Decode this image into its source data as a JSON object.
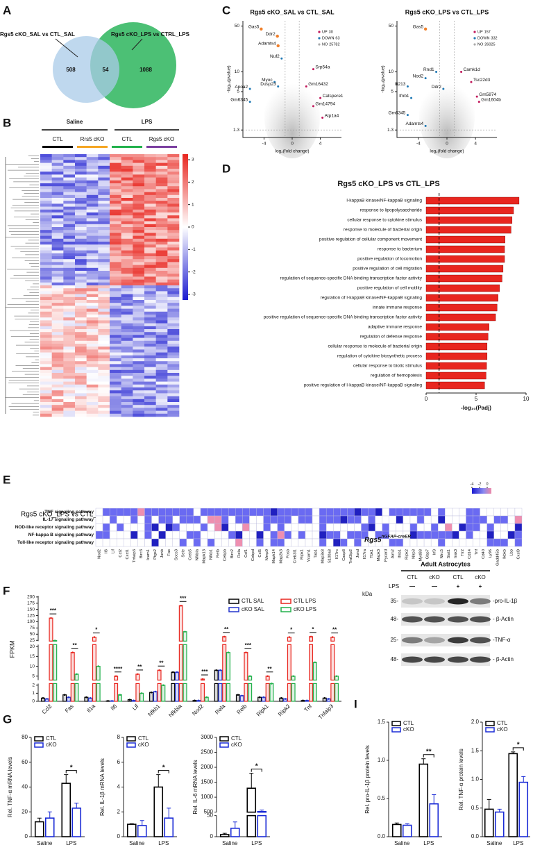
{
  "panel_labels": [
    "A",
    "B",
    "C",
    "D",
    "E",
    "F",
    "G",
    "H",
    "I"
  ],
  "venn": {
    "sets": [
      {
        "name": "Rgs5 cKO_SAL vs CTL_SAL",
        "color": "#a9cbe8"
      },
      {
        "name": "Rgs5 cKO_LPS vs CTRL_LPS",
        "color": "#2db55d"
      }
    ],
    "counts": [
      508,
      54,
      1088
    ]
  },
  "heatmap": {
    "groups": [
      "Saline",
      "LPS"
    ],
    "columns": [
      {
        "name": "CTL",
        "color": "#000000"
      },
      {
        "name": "Rrs5 cKO",
        "color": "#f5a623"
      },
      {
        "name": "CTL",
        "color": "#22b14c"
      },
      {
        "name": "Rgs5 cKO",
        "color": "#7b3fa0"
      }
    ],
    "cticks": [
      3,
      2,
      1,
      0,
      -1,
      -2,
      -3
    ]
  },
  "volcano": [
    {
      "title": "Rgs5 cKO_SAL vs CTL_SAL",
      "xlabel": "log₂(fold change)",
      "ylabel": "-log₁₀(pvalue)",
      "xlim": [
        -7,
        7
      ],
      "xticks": [
        -4,
        0,
        4
      ],
      "ylim": [
        1,
        60
      ],
      "yscale": "log",
      "yticks": [
        1.3,
        5,
        10,
        50
      ],
      "fc_cutoff": [
        -1,
        1
      ],
      "p_cutoff": 1.3,
      "legend": [
        {
          "name": "UP",
          "value": 30,
          "color": "#c2185b"
        },
        {
          "name": "DOWN",
          "value": 63,
          "color": "#1f78b4"
        },
        {
          "name": "NO",
          "value": 25782,
          "color": "#aaaaaa"
        }
      ],
      "genes": [
        {
          "name": "Gas5",
          "x": -4.4,
          "y": 45,
          "color": "#f07f2a"
        },
        {
          "name": "Ddr2",
          "x": -2.1,
          "y": 35,
          "color": "#f07f2a"
        },
        {
          "name": "Adamts4",
          "x": -2,
          "y": 25,
          "color": "#f07f2a"
        },
        {
          "name": "Nuf2",
          "x": -1.5,
          "y": 16
        },
        {
          "name": "Srp54a",
          "x": 3,
          "y": 11
        },
        {
          "name": "Myoc",
          "x": -2.5,
          "y": 7
        },
        {
          "name": "Dusp23",
          "x": -2,
          "y": 6
        },
        {
          "name": "Gm16432",
          "x": 2,
          "y": 6
        },
        {
          "name": "Apoa2",
          "x": -6,
          "y": 5.5
        },
        {
          "name": "Gm6345",
          "x": -6,
          "y": 3.5
        },
        {
          "name": "Catspere1",
          "x": 4,
          "y": 4
        },
        {
          "name": "Gm14794",
          "x": 3,
          "y": 3
        },
        {
          "name": "Atp1a4",
          "x": 4.3,
          "y": 2
        }
      ]
    },
    {
      "title": "Rgs5 cKO_LPS vs CTL_LPS",
      "xlabel": "log₂(fold change)",
      "ylabel": "-log₁₀(pvalue)",
      "xlim": [
        -7,
        7
      ],
      "xticks": [
        -4,
        0,
        4
      ],
      "ylim": [
        1,
        60
      ],
      "yscale": "log",
      "yticks": [
        1.3,
        5,
        10,
        50
      ],
      "fc_cutoff": [
        -1,
        1
      ],
      "p_cutoff": 1.3,
      "legend": [
        {
          "name": "UP",
          "value": 157,
          "color": "#c2185b"
        },
        {
          "name": "DOWN",
          "value": 332,
          "color": "#1f78b4"
        },
        {
          "name": "NO",
          "value": 26025,
          "color": "#aaaaaa"
        }
      ],
      "genes": [
        {
          "name": "Gas5",
          "x": -3,
          "y": 45,
          "color": "#f07f2a"
        },
        {
          "name": "Camk1d",
          "x": 2,
          "y": 10
        },
        {
          "name": "Rnd1",
          "x": -1.5,
          "y": 10
        },
        {
          "name": "Nod2",
          "x": -3,
          "y": 8
        },
        {
          "name": "Tsc22d3",
          "x": 3.4,
          "y": 7
        },
        {
          "name": "Ifi213",
          "x": -5.5,
          "y": 6
        },
        {
          "name": "Ddr2",
          "x": -0.5,
          "y": 5.5
        },
        {
          "name": "Ifnb1",
          "x": -5,
          "y": 4
        },
        {
          "name": "Gm5874",
          "x": 4.2,
          "y": 4.2
        },
        {
          "name": "Gm1604b",
          "x": 4.5,
          "y": 3.5
        },
        {
          "name": "Gm6345",
          "x": -5.5,
          "y": 2.2
        },
        {
          "name": "Adamts4",
          "x": -3,
          "y": 1.5
        }
      ]
    }
  ],
  "go": {
    "title": "Rgs5 cKO_LPS vs CTL_LPS",
    "xlabel": "-log₁₀(Padj)",
    "xlim": [
      0,
      10
    ],
    "xticks": [
      0,
      5,
      10
    ],
    "cutoff": 1.3,
    "color": "#e8261f",
    "categories": [
      "I-kappaB kinase/NF-kappaB signaling",
      "response to lipopolysaccharide",
      "cellular response to cytokine stimulus",
      "response to molecule of bacterial origin",
      "positive regulation of cellular component movement",
      "response to bacterium",
      "positive regulation of locomotion",
      "positive regulation of cell migration",
      "regulation of sequence-specific DNA binding transcription factor activity",
      "positive regulation of cell motility",
      "regulation of I-kappaB kinase/NF-kappaB signaling",
      "innate immune response",
      "positive regulation of sequence-specific DNA binding transcription factor activity",
      "adaptive immune response",
      "regulation of defense response",
      "cellular response to molecule of bacterial origin",
      "regulation of cytokine biosynthetic process",
      "cellular response to biotic stimulus",
      "regulation of hemopoiesis",
      "positive regulation of I-kappaB kinase/NF-kappaB signaling"
    ],
    "values": [
      9.3,
      8.75,
      8.6,
      8.5,
      7.9,
      7.85,
      7.85,
      7.7,
      7.6,
      7.35,
      7.2,
      7.1,
      6.95,
      6.3,
      6.2,
      6.1,
      6.1,
      6.05,
      6,
      5.85
    ]
  },
  "pathway": {
    "title": "Rgs5 cKO_LPS vs CTL_LPS",
    "pathways": [
      "TNF signaling pathway",
      "IL-17 signaling pathway",
      "NOD-like receptor signaling pathway",
      "NF-kappa B signaling pathway",
      "Toll-like receptor signaling pathway"
    ],
    "genes": [
      "Nod2",
      "Il6",
      "Lif",
      "Ccl2",
      "Cxcl1",
      "Tnfaip3",
      "Birc3",
      "Icam1",
      "Ptgs2",
      "Junb",
      "Fas",
      "Socs3",
      "Sele",
      "Creb5",
      "Nfkbia",
      "Mapk13",
      "Nfkb1",
      "Relb",
      "Cebpb",
      "Birc2",
      "Rela",
      "Csf1",
      "Cebpd",
      "Ccl5",
      "Mmp9",
      "Mapk14",
      "Map2k3",
      "Fosb",
      "Creb3l1",
      "Ripk1",
      "Vcam1",
      "Tab1",
      "Map3k8",
      "S100a8",
      "Il17rc",
      "Casp8",
      "Traf3ip2",
      "Jund",
      "Il17ra",
      "Tbk1",
      "Mapk3",
      "Pycard",
      "Aim2",
      "Ifnb1",
      "Ripk2",
      "Nlrp3",
      "Myd88",
      "Gbp7",
      "Irf3",
      "Nlrc5",
      "Stat1",
      "Irak3",
      "Tlr2",
      "Cd14",
      "Tnf",
      "Cd40",
      "Ly96",
      "Gadd45b",
      "Ikbkb",
      "Lbp",
      "Cxcl9"
    ],
    "cticks": [
      -4,
      -2,
      0
    ]
  },
  "fpkm": {
    "ylabel": "FPKM",
    "categories": [
      "Ccl2",
      "Fas",
      "Il1a",
      "Il6",
      "Lif",
      "Nfkb1",
      "Nfkbia",
      "Nod2",
      "Rela",
      "Relb",
      "Ripk1",
      "Ripk2",
      "Tnf",
      "Tnfaip3"
    ],
    "series": [
      {
        "name": "CTL SAL",
        "color": "#000000",
        "values": [
          0.4,
          0.8,
          0.5,
          0.05,
          0.2,
          1.1,
          7,
          0.1,
          8,
          0.8,
          0.5,
          0.4,
          0.1,
          0.4
        ]
      },
      {
        "name": "cKO SAL",
        "color": "#2233cc",
        "values": [
          0.3,
          0.5,
          0.4,
          0.05,
          0.1,
          1.2,
          7,
          0.1,
          8,
          0.7,
          0.5,
          0.3,
          0.1,
          0.3
        ]
      },
      {
        "name": "CTL LPS",
        "color": "#e8261f",
        "values": [
          115,
          17,
          38,
          5,
          6,
          8,
          165,
          3.5,
          40,
          17,
          5,
          38,
          40,
          38
        ]
      },
      {
        "name": "cKO LPS",
        "color": "#22b14c",
        "values": [
          24,
          6,
          10,
          0.8,
          1,
          2,
          60,
          0.5,
          17,
          5,
          2.5,
          5,
          12,
          5
        ]
      }
    ],
    "ylim": [
      [
        0,
        2.2
      ],
      [
        3,
        21
      ],
      [
        22,
        205
      ]
    ],
    "yticks": [
      0,
      1,
      2,
      5,
      10,
      15,
      20,
      25,
      50,
      75,
      100,
      125,
      150,
      175,
      200
    ],
    "significance": [
      "***",
      "**",
      "*",
      "****",
      "**",
      "**",
      "***",
      "***",
      "**",
      "***",
      "**",
      "*",
      "*",
      "**"
    ]
  },
  "western": {
    "title": "Rgs5",
    "title_sup": "hGFAP-creER",
    "subtitle": "Adult Astrocytes",
    "lanes": [
      "CTL",
      "cKO",
      "CTL",
      "cKO"
    ],
    "lps_label": "LPS",
    "lps": [
      "—",
      "—",
      "+",
      "+"
    ],
    "kda_label": "kDa",
    "rows": [
      {
        "kda": "35-",
        "label": "-pro-IL-1β"
      },
      {
        "kda": "48-",
        "label": "- β-Actin"
      },
      {
        "kda": "25-",
        "label": "-TNF-α"
      },
      {
        "kda": "48-",
        "label": "- β-Actin"
      }
    ]
  },
  "mrna": [
    {
      "ylabel": "Rel. TNF-α mRNA levels",
      "categories": [
        "Saline",
        "LPS"
      ],
      "ylim": [
        [
          0,
          80
        ]
      ],
      "yticks": [
        0,
        20,
        40,
        60,
        80
      ],
      "significance": "*",
      "series": [
        {
          "name": "CTL",
          "color": "#000000",
          "values": [
            12,
            43
          ],
          "errors": [
            3,
            7
          ]
        },
        {
          "name": "cKO",
          "color": "#1a2bd6",
          "values": [
            15,
            23
          ],
          "errors": [
            5,
            4
          ]
        }
      ]
    },
    {
      "ylabel": "Rel. IL-1β mRNA levels",
      "categories": [
        "Saline",
        "LPS"
      ],
      "ylim": [
        [
          0,
          8
        ]
      ],
      "yticks": [
        0,
        2,
        4,
        6,
        8
      ],
      "significance": "*",
      "series": [
        {
          "name": "CTL",
          "color": "#000000",
          "values": [
            1,
            4
          ],
          "errors": [
            0.05,
            1
          ]
        },
        {
          "name": "cKO",
          "color": "#1a2bd6",
          "values": [
            0.9,
            1.5
          ],
          "errors": [
            0.4,
            0.8
          ]
        }
      ]
    },
    {
      "ylabel": "Rel. IL-6 mRNA levels",
      "categories": [
        "Saline",
        "LPS"
      ],
      "ylim": [
        [
          0,
          50
        ],
        [
          500,
          3000
        ]
      ],
      "yticks": [
        0,
        50,
        500,
        1000,
        1500,
        2000,
        2500,
        3000
      ],
      "significance": "*",
      "series": [
        {
          "name": "CTL",
          "color": "#000000",
          "values": [
            5,
            1300
          ],
          "errors": [
            3,
            500
          ]
        },
        {
          "name": "cKO",
          "color": "#1a2bd6",
          "values": [
            20,
            520
          ],
          "errors": [
            15,
            50
          ]
        }
      ]
    }
  ],
  "protein": [
    {
      "ylabel": "Rel. pro-IL-1β protein levels",
      "categories": [
        "Saline",
        "LPS"
      ],
      "ylim": [
        [
          0,
          1.5
        ]
      ],
      "yticks": [
        {
          "value": 0,
          "label": "0.0"
        },
        0.5,
        {
          "value": 1,
          "label": "1.0"
        },
        1.5
      ],
      "significance": "**",
      "series": [
        {
          "name": "CTL",
          "color": "#000000",
          "values": [
            0.16,
            0.95
          ],
          "errors": [
            0.02,
            0.07
          ]
        },
        {
          "name": "cKO",
          "color": "#1a2bd6",
          "values": [
            0.15,
            0.43
          ],
          "errors": [
            0.02,
            0.12
          ]
        }
      ]
    },
    {
      "ylabel": "Rel. TNF-α protein levels",
      "categories": [
        "Saline",
        "LPS"
      ],
      "ylim": [
        [
          0,
          2
        ]
      ],
      "yticks": [
        {
          "value": 0,
          "label": "0.0"
        },
        0.5,
        {
          "value": 1,
          "label": "1.0"
        },
        1.5,
        {
          "value": 2,
          "label": "2.0"
        }
      ],
      "significance": "*",
      "series": [
        {
          "name": "CTL",
          "color": "#000000",
          "values": [
            0.48,
            1.45
          ],
          "errors": [
            0.17,
            0.03
          ]
        },
        {
          "name": "cKO",
          "color": "#1a2bd6",
          "values": [
            0.43,
            0.95
          ],
          "errors": [
            0.05,
            0.1
          ]
        }
      ]
    }
  ]
}
